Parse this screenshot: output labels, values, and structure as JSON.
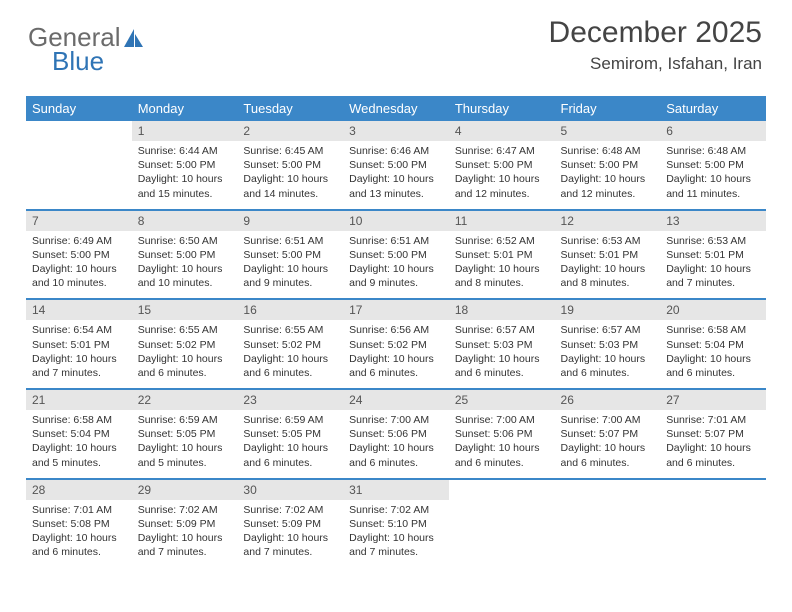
{
  "brand": {
    "part1": "General",
    "part2": "Blue",
    "logo_color": "#2f74b5"
  },
  "title": "December 2025",
  "subtitle": "Semirom, Isfahan, Iran",
  "colors": {
    "header_bg": "#3b87c8",
    "header_fg": "#ffffff",
    "daynum_bg": "#e6e6e6",
    "rule": "#3b87c8",
    "text": "#333333"
  },
  "weekdays": [
    "Sunday",
    "Monday",
    "Tuesday",
    "Wednesday",
    "Thursday",
    "Friday",
    "Saturday"
  ],
  "weeks": [
    [
      {
        "n": "",
        "lines": []
      },
      {
        "n": "1",
        "lines": [
          "Sunrise: 6:44 AM",
          "Sunset: 5:00 PM",
          "Daylight: 10 hours",
          "and 15 minutes."
        ]
      },
      {
        "n": "2",
        "lines": [
          "Sunrise: 6:45 AM",
          "Sunset: 5:00 PM",
          "Daylight: 10 hours",
          "and 14 minutes."
        ]
      },
      {
        "n": "3",
        "lines": [
          "Sunrise: 6:46 AM",
          "Sunset: 5:00 PM",
          "Daylight: 10 hours",
          "and 13 minutes."
        ]
      },
      {
        "n": "4",
        "lines": [
          "Sunrise: 6:47 AM",
          "Sunset: 5:00 PM",
          "Daylight: 10 hours",
          "and 12 minutes."
        ]
      },
      {
        "n": "5",
        "lines": [
          "Sunrise: 6:48 AM",
          "Sunset: 5:00 PM",
          "Daylight: 10 hours",
          "and 12 minutes."
        ]
      },
      {
        "n": "6",
        "lines": [
          "Sunrise: 6:48 AM",
          "Sunset: 5:00 PM",
          "Daylight: 10 hours",
          "and 11 minutes."
        ]
      }
    ],
    [
      {
        "n": "7",
        "lines": [
          "Sunrise: 6:49 AM",
          "Sunset: 5:00 PM",
          "Daylight: 10 hours",
          "and 10 minutes."
        ]
      },
      {
        "n": "8",
        "lines": [
          "Sunrise: 6:50 AM",
          "Sunset: 5:00 PM",
          "Daylight: 10 hours",
          "and 10 minutes."
        ]
      },
      {
        "n": "9",
        "lines": [
          "Sunrise: 6:51 AM",
          "Sunset: 5:00 PM",
          "Daylight: 10 hours",
          "and 9 minutes."
        ]
      },
      {
        "n": "10",
        "lines": [
          "Sunrise: 6:51 AM",
          "Sunset: 5:00 PM",
          "Daylight: 10 hours",
          "and 9 minutes."
        ]
      },
      {
        "n": "11",
        "lines": [
          "Sunrise: 6:52 AM",
          "Sunset: 5:01 PM",
          "Daylight: 10 hours",
          "and 8 minutes."
        ]
      },
      {
        "n": "12",
        "lines": [
          "Sunrise: 6:53 AM",
          "Sunset: 5:01 PM",
          "Daylight: 10 hours",
          "and 8 minutes."
        ]
      },
      {
        "n": "13",
        "lines": [
          "Sunrise: 6:53 AM",
          "Sunset: 5:01 PM",
          "Daylight: 10 hours",
          "and 7 minutes."
        ]
      }
    ],
    [
      {
        "n": "14",
        "lines": [
          "Sunrise: 6:54 AM",
          "Sunset: 5:01 PM",
          "Daylight: 10 hours",
          "and 7 minutes."
        ]
      },
      {
        "n": "15",
        "lines": [
          "Sunrise: 6:55 AM",
          "Sunset: 5:02 PM",
          "Daylight: 10 hours",
          "and 6 minutes."
        ]
      },
      {
        "n": "16",
        "lines": [
          "Sunrise: 6:55 AM",
          "Sunset: 5:02 PM",
          "Daylight: 10 hours",
          "and 6 minutes."
        ]
      },
      {
        "n": "17",
        "lines": [
          "Sunrise: 6:56 AM",
          "Sunset: 5:02 PM",
          "Daylight: 10 hours",
          "and 6 minutes."
        ]
      },
      {
        "n": "18",
        "lines": [
          "Sunrise: 6:57 AM",
          "Sunset: 5:03 PM",
          "Daylight: 10 hours",
          "and 6 minutes."
        ]
      },
      {
        "n": "19",
        "lines": [
          "Sunrise: 6:57 AM",
          "Sunset: 5:03 PM",
          "Daylight: 10 hours",
          "and 6 minutes."
        ]
      },
      {
        "n": "20",
        "lines": [
          "Sunrise: 6:58 AM",
          "Sunset: 5:04 PM",
          "Daylight: 10 hours",
          "and 6 minutes."
        ]
      }
    ],
    [
      {
        "n": "21",
        "lines": [
          "Sunrise: 6:58 AM",
          "Sunset: 5:04 PM",
          "Daylight: 10 hours",
          "and 5 minutes."
        ]
      },
      {
        "n": "22",
        "lines": [
          "Sunrise: 6:59 AM",
          "Sunset: 5:05 PM",
          "Daylight: 10 hours",
          "and 5 minutes."
        ]
      },
      {
        "n": "23",
        "lines": [
          "Sunrise: 6:59 AM",
          "Sunset: 5:05 PM",
          "Daylight: 10 hours",
          "and 6 minutes."
        ]
      },
      {
        "n": "24",
        "lines": [
          "Sunrise: 7:00 AM",
          "Sunset: 5:06 PM",
          "Daylight: 10 hours",
          "and 6 minutes."
        ]
      },
      {
        "n": "25",
        "lines": [
          "Sunrise: 7:00 AM",
          "Sunset: 5:06 PM",
          "Daylight: 10 hours",
          "and 6 minutes."
        ]
      },
      {
        "n": "26",
        "lines": [
          "Sunrise: 7:00 AM",
          "Sunset: 5:07 PM",
          "Daylight: 10 hours",
          "and 6 minutes."
        ]
      },
      {
        "n": "27",
        "lines": [
          "Sunrise: 7:01 AM",
          "Sunset: 5:07 PM",
          "Daylight: 10 hours",
          "and 6 minutes."
        ]
      }
    ],
    [
      {
        "n": "28",
        "lines": [
          "Sunrise: 7:01 AM",
          "Sunset: 5:08 PM",
          "Daylight: 10 hours",
          "and 6 minutes."
        ]
      },
      {
        "n": "29",
        "lines": [
          "Sunrise: 7:02 AM",
          "Sunset: 5:09 PM",
          "Daylight: 10 hours",
          "and 7 minutes."
        ]
      },
      {
        "n": "30",
        "lines": [
          "Sunrise: 7:02 AM",
          "Sunset: 5:09 PM",
          "Daylight: 10 hours",
          "and 7 minutes."
        ]
      },
      {
        "n": "31",
        "lines": [
          "Sunrise: 7:02 AM",
          "Sunset: 5:10 PM",
          "Daylight: 10 hours",
          "and 7 minutes."
        ]
      },
      {
        "n": "",
        "lines": []
      },
      {
        "n": "",
        "lines": []
      },
      {
        "n": "",
        "lines": []
      }
    ]
  ]
}
